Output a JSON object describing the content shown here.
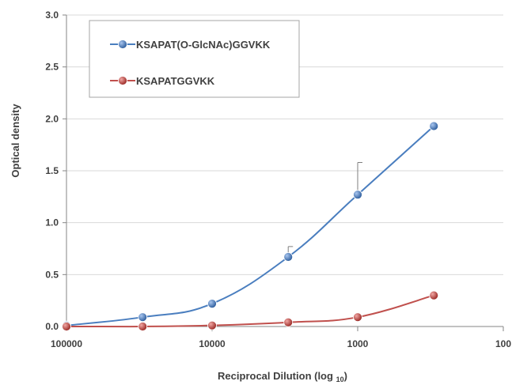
{
  "chart_data": {
    "type": "line",
    "title": "",
    "xlabel_main": "Reciprocal Dilution (log",
    "xlabel_sub": "10",
    "xlabel_close": ")",
    "ylabel": "Optical density",
    "x_scale": "log",
    "x_reversed": true,
    "xlim": [
      100000,
      100
    ],
    "ylim": [
      0,
      3.0
    ],
    "x_ticks": [
      100000,
      10000,
      1000,
      100
    ],
    "x_tick_labels": [
      "100000",
      "10000",
      "1000",
      "100"
    ],
    "y_ticks": [
      0,
      0.5,
      1.0,
      1.5,
      2.0,
      2.5,
      3.0
    ],
    "y_tick_labels": [
      "0.0",
      "0.5",
      "1.0",
      "1.5",
      "2.0",
      "2.5",
      "3.0"
    ],
    "grid": "horizontal",
    "legend_position": "top-left",
    "series": [
      {
        "name": "KSAPAT(O-GlcNAc)GGVKK",
        "color": "#4a7ebf",
        "marker_fill": "#3f74c4",
        "x": [
          100000,
          30000,
          10000,
          3000,
          1000,
          300
        ],
        "y": [
          0.01,
          0.09,
          0.22,
          0.67,
          1.27,
          1.93
        ],
        "error_plus": [
          0,
          0,
          0,
          0.1,
          0.31,
          0
        ]
      },
      {
        "name": "KSAPATGGVKK",
        "color": "#c0504d",
        "marker_fill": "#c9403b",
        "x": [
          100000,
          30000,
          10000,
          3000,
          1000,
          300
        ],
        "y": [
          0.0,
          0.0,
          0.01,
          0.04,
          0.09,
          0.3
        ],
        "error_plus": [
          0,
          0,
          0,
          0,
          0,
          0
        ]
      }
    ]
  }
}
